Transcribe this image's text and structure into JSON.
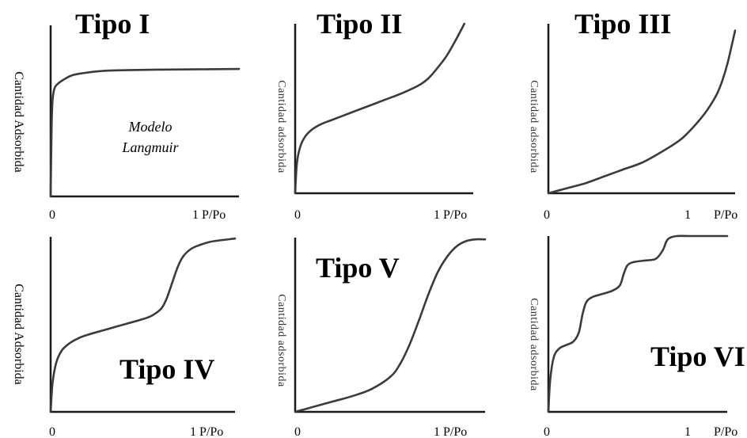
{
  "chart_data": [
    {
      "type": "line",
      "title": "Tipo I",
      "ylabel": "Cantidad Adsorbida",
      "xlabel": "P/Po",
      "x_ticks": [
        "0",
        "1 P/Po"
      ],
      "xlim": [
        0,
        1
      ],
      "ylim": [
        0,
        1
      ],
      "annotation": [
        "Modelo",
        "Langmuir"
      ],
      "series": [
        {
          "x": [
            0,
            0.005,
            0.01,
            0.02,
            0.04,
            0.08,
            0.12,
            0.2,
            0.3,
            0.5,
            0.7,
            1.0
          ],
          "y": [
            0,
            0.4,
            0.56,
            0.63,
            0.66,
            0.69,
            0.71,
            0.725,
            0.735,
            0.74,
            0.742,
            0.745
          ]
        }
      ]
    },
    {
      "type": "line",
      "title": "Tipo II",
      "ylabel": "Cantidad adsorbida",
      "xlabel": "P/Po",
      "x_ticks": [
        "0",
        "1 P/Po"
      ],
      "xlim": [
        0,
        1
      ],
      "ylim": [
        0,
        1
      ],
      "series": [
        {
          "x": [
            0,
            0.01,
            0.03,
            0.06,
            0.1,
            0.15,
            0.2,
            0.3,
            0.4,
            0.5,
            0.6,
            0.7,
            0.75,
            0.8,
            0.85,
            0.9,
            0.95
          ],
          "y": [
            0,
            0.18,
            0.28,
            0.34,
            0.38,
            0.41,
            0.43,
            0.47,
            0.51,
            0.55,
            0.59,
            0.64,
            0.68,
            0.74,
            0.81,
            0.9,
            1.0
          ]
        }
      ]
    },
    {
      "type": "line",
      "title": "Tipo III",
      "ylabel": "Cantidad adsorbida",
      "xlabel": "P/Po",
      "x_ticks": [
        "0",
        "1",
        "P/Po"
      ],
      "xlim": [
        0,
        1
      ],
      "ylim": [
        0,
        1
      ],
      "series": [
        {
          "x": [
            0,
            0.1,
            0.2,
            0.3,
            0.4,
            0.5,
            0.6,
            0.7,
            0.75,
            0.8,
            0.85,
            0.9,
            0.93,
            0.96,
            1.0
          ],
          "y": [
            0,
            0.03,
            0.06,
            0.1,
            0.14,
            0.18,
            0.24,
            0.31,
            0.36,
            0.42,
            0.49,
            0.58,
            0.66,
            0.77,
            0.96
          ]
        }
      ]
    },
    {
      "type": "line",
      "title": "Tipo IV",
      "ylabel": "Cantidad Adsorbida",
      "xlabel": "P/Po",
      "x_ticks": [
        "0",
        "1 P/Po"
      ],
      "xlim": [
        0,
        1
      ],
      "ylim": [
        0,
        1
      ],
      "series": [
        {
          "x": [
            0,
            0.01,
            0.03,
            0.06,
            0.1,
            0.15,
            0.2,
            0.3,
            0.4,
            0.5,
            0.55,
            0.6,
            0.63,
            0.66,
            0.69,
            0.72,
            0.76,
            0.8,
            0.86,
            0.92,
            1.0
          ],
          "y": [
            0,
            0.16,
            0.28,
            0.35,
            0.39,
            0.42,
            0.44,
            0.47,
            0.5,
            0.53,
            0.55,
            0.59,
            0.65,
            0.74,
            0.83,
            0.89,
            0.93,
            0.95,
            0.97,
            0.98,
            0.99
          ]
        }
      ]
    },
    {
      "type": "line",
      "title": "Tipo V",
      "ylabel": "Cantidad adsorbida",
      "xlabel": "P/Po",
      "x_ticks": [
        "0",
        "1 P/Po"
      ],
      "xlim": [
        0,
        1
      ],
      "ylim": [
        0,
        1
      ],
      "series": [
        {
          "x": [
            0,
            0.1,
            0.2,
            0.3,
            0.4,
            0.5,
            0.55,
            0.6,
            0.65,
            0.7,
            0.75,
            0.8,
            0.85,
            0.9,
            0.95,
            1.0
          ],
          "y": [
            0,
            0.03,
            0.06,
            0.09,
            0.13,
            0.2,
            0.27,
            0.38,
            0.52,
            0.67,
            0.8,
            0.89,
            0.95,
            0.98,
            0.99,
            0.99
          ]
        }
      ]
    },
    {
      "type": "line",
      "title": "Tipo VI",
      "ylabel": "Cantidad adsorbida",
      "xlabel": "P/Po",
      "x_ticks": [
        "0",
        "1",
        "P/Po"
      ],
      "xlim": [
        0,
        1
      ],
      "ylim": [
        0,
        1
      ],
      "series": [
        {
          "x": [
            0,
            0.01,
            0.03,
            0.06,
            0.1,
            0.14,
            0.17,
            0.19,
            0.21,
            0.24,
            0.3,
            0.36,
            0.4,
            0.42,
            0.44,
            0.47,
            0.53,
            0.6,
            0.64,
            0.66,
            0.68,
            0.72,
            0.8,
            0.9,
            1.0
          ],
          "y": [
            0,
            0.18,
            0.31,
            0.36,
            0.38,
            0.4,
            0.45,
            0.55,
            0.62,
            0.65,
            0.67,
            0.69,
            0.72,
            0.78,
            0.83,
            0.85,
            0.86,
            0.87,
            0.92,
            0.97,
            0.99,
            1.0,
            1.0,
            1.0,
            1.0
          ]
        }
      ]
    }
  ]
}
